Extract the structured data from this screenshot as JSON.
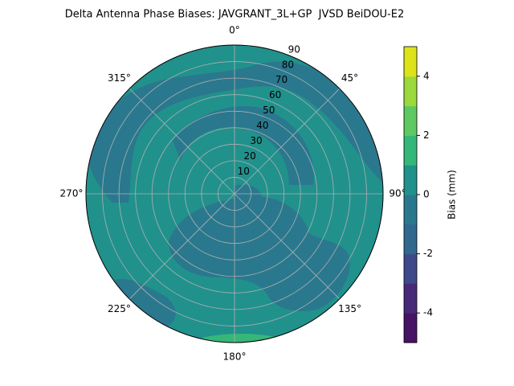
{
  "chart_data": {
    "type": "polar-contour",
    "title": "Delta Antenna Phase Biases: JAVGRANT_3L+GP  JVSD BeiDOU-E2",
    "theta_ticks": [
      {
        "value": 0,
        "label": "0°"
      },
      {
        "value": 45,
        "label": "45°"
      },
      {
        "value": 90,
        "label": "90°"
      },
      {
        "value": 135,
        "label": "135°"
      },
      {
        "value": 180,
        "label": "180°"
      },
      {
        "value": 225,
        "label": "225°"
      },
      {
        "value": 270,
        "label": "270°"
      },
      {
        "value": 315,
        "label": "315°"
      }
    ],
    "rlim": [
      0,
      90
    ],
    "rticks": [
      10,
      20,
      30,
      40,
      50,
      60,
      70,
      80,
      90
    ],
    "grid": true,
    "colorbar": {
      "label": "Bias (mm)",
      "levels": [
        -5,
        -4,
        -3,
        -2,
        -1,
        0,
        1,
        2,
        3,
        4,
        5
      ],
      "colors": [
        "#471365",
        "#482878",
        "#3e4989",
        "#31688e",
        "#2a788e",
        "#21918c",
        "#35b779",
        "#5ec962",
        "#9bd93c",
        "#dde318"
      ],
      "ticks": [
        -4,
        -2,
        0,
        2,
        4
      ]
    }
  }
}
